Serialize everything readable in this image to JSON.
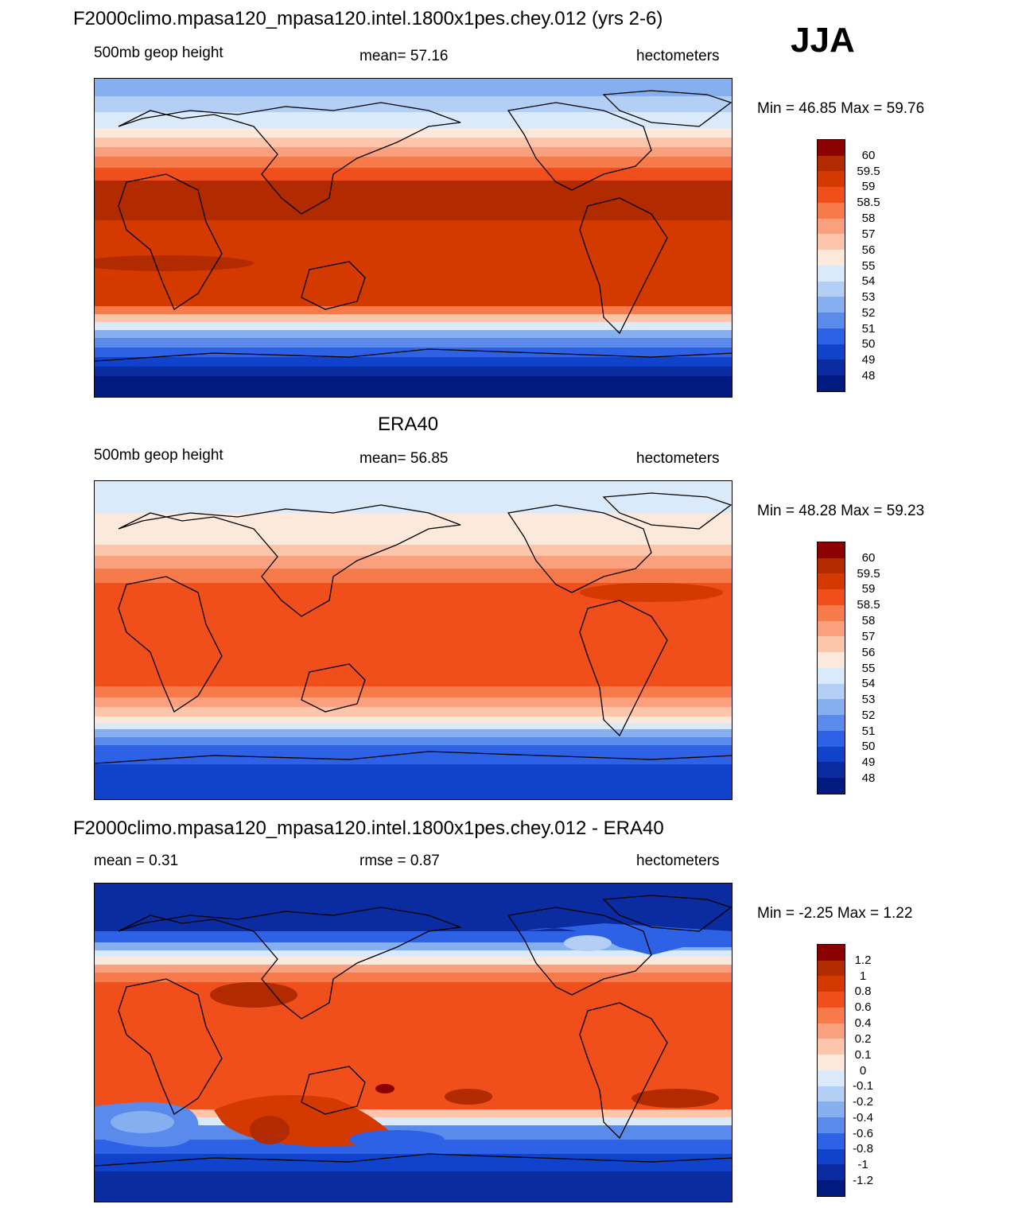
{
  "season": "JJA",
  "panels": [
    {
      "title": "F2000climo.mpasa120_mpasa120.intel.1800x1pes.chey.012 (yrs 2-6)",
      "left_label": "500mb geop height",
      "center_label": "mean=  57.16",
      "right_label": "hectometers",
      "minmax": "Min =  46.85 Max =  59.76"
    },
    {
      "title": "ERA40",
      "left_label": "500mb geop height",
      "center_label": "mean=  56.85",
      "right_label": "hectometers",
      "minmax": "Min =  48.28 Max =  59.23"
    },
    {
      "title": "F2000climo.mpasa120_mpasa120.intel.1800x1pes.chey.012 - ERA40",
      "left_label": "mean =   0.31",
      "center_label": "rmse =   0.87",
      "right_label": "hectometers",
      "minmax": "Min =  -2.25 Max =   1.22"
    }
  ],
  "colorbars": {
    "field": {
      "labels": [
        "60",
        "59.5",
        "59",
        "58.5",
        "58",
        "57",
        "56",
        "55",
        "54",
        "53",
        "52",
        "51",
        "50",
        "49",
        "48"
      ],
      "colors": [
        "#8b0000",
        "#b22a00",
        "#d43a00",
        "#f04e1a",
        "#f77b4a",
        "#fba07e",
        "#fdc5aa",
        "#fde9dc",
        "#dbeafb",
        "#b3cff5",
        "#86aff0",
        "#5a8aeb",
        "#2d62e6",
        "#1142cc",
        "#0a2ca0",
        "#001a80"
      ]
    },
    "diff": {
      "labels": [
        "1.2",
        "1",
        "0.8",
        "0.6",
        "0.4",
        "0.2",
        "0.1",
        "0",
        "-0.1",
        "-0.2",
        "-0.4",
        "-0.6",
        "-0.8",
        "-1",
        "-1.2"
      ],
      "colors": [
        "#8b0000",
        "#b22a00",
        "#d43a00",
        "#f04e1a",
        "#f77b4a",
        "#fba07e",
        "#fdc5aa",
        "#fde9dc",
        "#dbeafb",
        "#b3cff5",
        "#86aff0",
        "#5a8aeb",
        "#2d62e6",
        "#1142cc",
        "#0a2ca0",
        "#001a80"
      ]
    }
  },
  "chart_data": [
    {
      "type": "heatmap",
      "title": "F2000climo.mpasa120_mpasa120.intel.1800x1pes.chey.012 (yrs 2-6)",
      "variable": "500mb geop height",
      "units": "hectometers",
      "mean": 57.16,
      "min": 46.85,
      "max": 59.76,
      "levels": [
        48,
        49,
        50,
        51,
        52,
        53,
        54,
        55,
        56,
        57,
        58,
        58.5,
        59,
        59.5,
        60
      ]
    },
    {
      "type": "heatmap",
      "title": "ERA40",
      "variable": "500mb geop height",
      "units": "hectometers",
      "mean": 56.85,
      "min": 48.28,
      "max": 59.23,
      "levels": [
        48,
        49,
        50,
        51,
        52,
        53,
        54,
        55,
        56,
        57,
        58,
        58.5,
        59,
        59.5,
        60
      ]
    },
    {
      "type": "heatmap",
      "title": "F2000climo.mpasa120_mpasa120.intel.1800x1pes.chey.012 - ERA40",
      "units": "hectometers",
      "mean": 0.31,
      "rmse": 0.87,
      "min": -2.25,
      "max": 1.22,
      "levels": [
        -1.2,
        -1,
        -0.8,
        -0.6,
        -0.4,
        -0.2,
        -0.1,
        0,
        0.1,
        0.2,
        0.4,
        0.6,
        0.8,
        1,
        1.2
      ]
    }
  ]
}
